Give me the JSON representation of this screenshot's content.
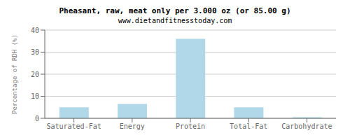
{
  "chart_data": {
    "type": "bar",
    "title": "Pheasant, raw, meat only per 3.000 oz (or 85.00 g)",
    "subtitle": "www.dietandfitnesstoday.com",
    "ylabel": "Percentage of RDH (%)",
    "categories": [
      "Saturated-Fat",
      "Energy",
      "Protein",
      "Total-Fat",
      "Carbohydrate"
    ],
    "values": [
      5.0,
      6.5,
      36.0,
      5.0,
      0.5
    ],
    "color": "#b0d8e8",
    "ylim": [
      0,
      40
    ],
    "yticks": [
      0,
      10,
      20,
      30,
      40
    ],
    "grid": true
  }
}
